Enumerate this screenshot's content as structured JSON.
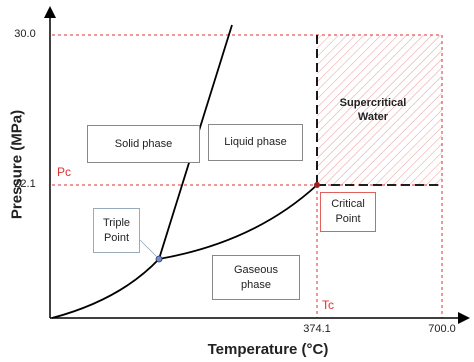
{
  "axes": {
    "x_label": "Temperature (°C)",
    "y_label": "Pressure (MPa)",
    "x_ticks": [
      "374.1",
      "700.0"
    ],
    "y_ticks": [
      "30.0",
      "22.1"
    ]
  },
  "regions": {
    "solid": "Solid phase",
    "liquid": "Liquid phase",
    "gas": "Gaseous phase",
    "supercritical": "Supercritical Water"
  },
  "markers": {
    "pc": "Pc",
    "tc": "Tc"
  },
  "points": {
    "triple": "Triple Point",
    "critical": "Critical Point"
  }
}
